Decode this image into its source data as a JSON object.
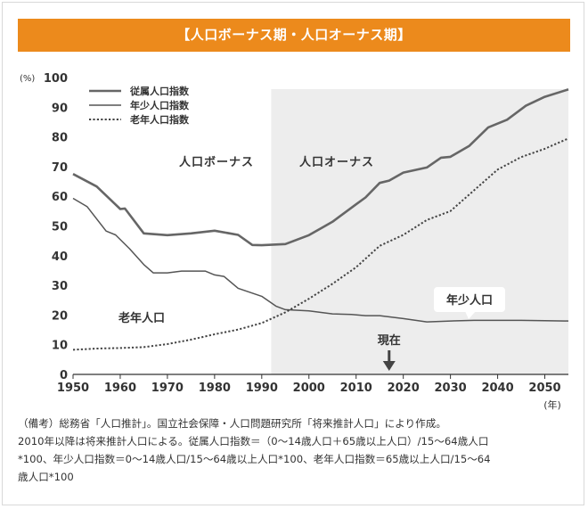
{
  "title": "【人口ボーナス期・人口オーナス期】",
  "chart_data": {
    "type": "line",
    "y_unit": "(%)",
    "x_unit": "(年)",
    "xlim": [
      1950,
      2055
    ],
    "ylim": [
      0,
      100
    ],
    "x_ticks": [
      "1950",
      "1960",
      "1970",
      "1980",
      "1990",
      "2000",
      "2010",
      "2020",
      "2030",
      "2040",
      "2050"
    ],
    "y_ticks": [
      {
        "value": 0,
        "label": "0"
      },
      {
        "value": 10,
        "label": "10"
      },
      {
        "value": 20,
        "label": "20"
      },
      {
        "value": 30,
        "label": "30"
      },
      {
        "value": 40,
        "label": "40"
      },
      {
        "value": 50,
        "label": "50"
      },
      {
        "value": 60,
        "label": "60"
      },
      {
        "value": 70,
        "label": "70"
      },
      {
        "value": 80,
        "label": "80"
      },
      {
        "value": 90,
        "label": "90"
      },
      {
        "value": 100,
        "label": "100"
      }
    ],
    "legend": {
      "placement": "top-left"
    },
    "series": [
      {
        "name": "従属人口指数",
        "style": "thick-solid",
        "color": "#666666",
        "points": [
          [
            1950,
            67.5
          ],
          [
            1955,
            63.3
          ],
          [
            1960,
            55.7
          ],
          [
            1961,
            55.9
          ],
          [
            1965,
            47.5
          ],
          [
            1970,
            46.9
          ],
          [
            1975,
            47.5
          ],
          [
            1980,
            48.4
          ],
          [
            1985,
            47.0
          ],
          [
            1988,
            43.6
          ],
          [
            1990,
            43.5
          ],
          [
            1995,
            43.9
          ],
          [
            2000,
            46.9
          ],
          [
            2005,
            51.4
          ],
          [
            2010,
            57.3
          ],
          [
            2012,
            59.6
          ],
          [
            2015,
            64.5
          ],
          [
            2017,
            65.3
          ],
          [
            2020,
            68.0
          ],
          [
            2025,
            69.7
          ],
          [
            2028,
            73.0
          ],
          [
            2030,
            73.3
          ],
          [
            2034,
            77.0
          ],
          [
            2038,
            83.2
          ],
          [
            2042,
            85.8
          ],
          [
            2046,
            90.5
          ],
          [
            2050,
            93.5
          ],
          [
            2055,
            96.0
          ]
        ]
      },
      {
        "name": "年少人口指数",
        "style": "thin-solid",
        "color": "#555555",
        "points": [
          [
            1950,
            59.3
          ],
          [
            1953,
            56.5
          ],
          [
            1957,
            48.3
          ],
          [
            1959,
            47.0
          ],
          [
            1962,
            42.3
          ],
          [
            1965,
            37.0
          ],
          [
            1967,
            34.2
          ],
          [
            1970,
            34.2
          ],
          [
            1973,
            34.8
          ],
          [
            1978,
            34.8
          ],
          [
            1980,
            33.5
          ],
          [
            1982,
            33.0
          ],
          [
            1985,
            29.0
          ],
          [
            1990,
            26.3
          ],
          [
            1993,
            23.0
          ],
          [
            1995,
            21.8
          ],
          [
            2000,
            21.4
          ],
          [
            2005,
            20.4
          ],
          [
            2009,
            20.2
          ],
          [
            2012,
            19.8
          ],
          [
            2015,
            19.8
          ],
          [
            2020,
            18.8
          ],
          [
            2025,
            17.7
          ],
          [
            2030,
            18.0
          ],
          [
            2035,
            18.2
          ],
          [
            2040,
            18.2
          ],
          [
            2045,
            18.2
          ],
          [
            2050,
            18.1
          ],
          [
            2055,
            18.0
          ]
        ]
      },
      {
        "name": "老年人口指数",
        "style": "dotted",
        "color": "#444444",
        "points": [
          [
            1950,
            8.3
          ],
          [
            1955,
            8.7
          ],
          [
            1960,
            8.9
          ],
          [
            1965,
            9.2
          ],
          [
            1970,
            10.2
          ],
          [
            1975,
            11.7
          ],
          [
            1980,
            13.5
          ],
          [
            1985,
            15.1
          ],
          [
            1990,
            17.3
          ],
          [
            1995,
            20.9
          ],
          [
            2000,
            25.5
          ],
          [
            2005,
            30.5
          ],
          [
            2010,
            36.1
          ],
          [
            2015,
            43.3
          ],
          [
            2020,
            47.0
          ],
          [
            2025,
            52.0
          ],
          [
            2030,
            55.0
          ],
          [
            2035,
            62.0
          ],
          [
            2040,
            69.0
          ],
          [
            2045,
            73.2
          ],
          [
            2050,
            76.0
          ],
          [
            2055,
            79.5
          ]
        ]
      }
    ],
    "annotations": {
      "bonus_label": "人口ボーナス",
      "onus_label": "人口オーナス",
      "onus_start_year": 1992,
      "elderly_label": "老年人口",
      "youth_label": "年少人口",
      "current_label": "現在",
      "current_year": 2017
    }
  },
  "notes": [
    "（備考）総務省「人口推計」。国立社会保障・人口問題研究所「将来推計人口」により作成。",
    "2010年以降は将来推計人口による。従属人口指数＝（0～14歳人口＋65歳以上人口）/15～64歳人口",
    "*100、年少人口指数＝0～14歳人口/15～64歳以上人口*100、老年人口指数＝65歳以上人口/15～64",
    "歳人口*100"
  ]
}
